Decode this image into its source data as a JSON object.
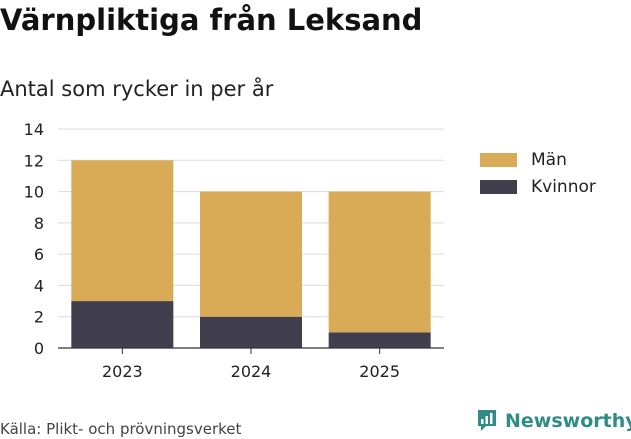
{
  "title": "Värnpliktiga från Leksand",
  "subtitle": "Antal som rycker in per år",
  "source": "Källa: Plikt- och prövningsverket",
  "logo_text": "Newsworthy",
  "colors": {
    "man": "#d9ab57",
    "kvinnor": "#413f4d",
    "grid": "#dcdcdc",
    "axis": "#333333",
    "logo": "#2f8c87"
  },
  "chart_data": {
    "type": "bar",
    "stacked": true,
    "categories": [
      "2023",
      "2024",
      "2025"
    ],
    "series": [
      {
        "name": "Kvinnor",
        "values": [
          3,
          2,
          1
        ],
        "color": "#413f4d"
      },
      {
        "name": "Män",
        "values": [
          9,
          8,
          9
        ],
        "color": "#d9ab57"
      }
    ],
    "legend": [
      "Män",
      "Kvinnor"
    ],
    "legend_placement": "right",
    "ylim": [
      0,
      14
    ],
    "yticks": [
      0,
      2,
      4,
      6,
      8,
      10,
      12,
      14
    ],
    "grid": true,
    "xlabel": "",
    "ylabel": ""
  }
}
